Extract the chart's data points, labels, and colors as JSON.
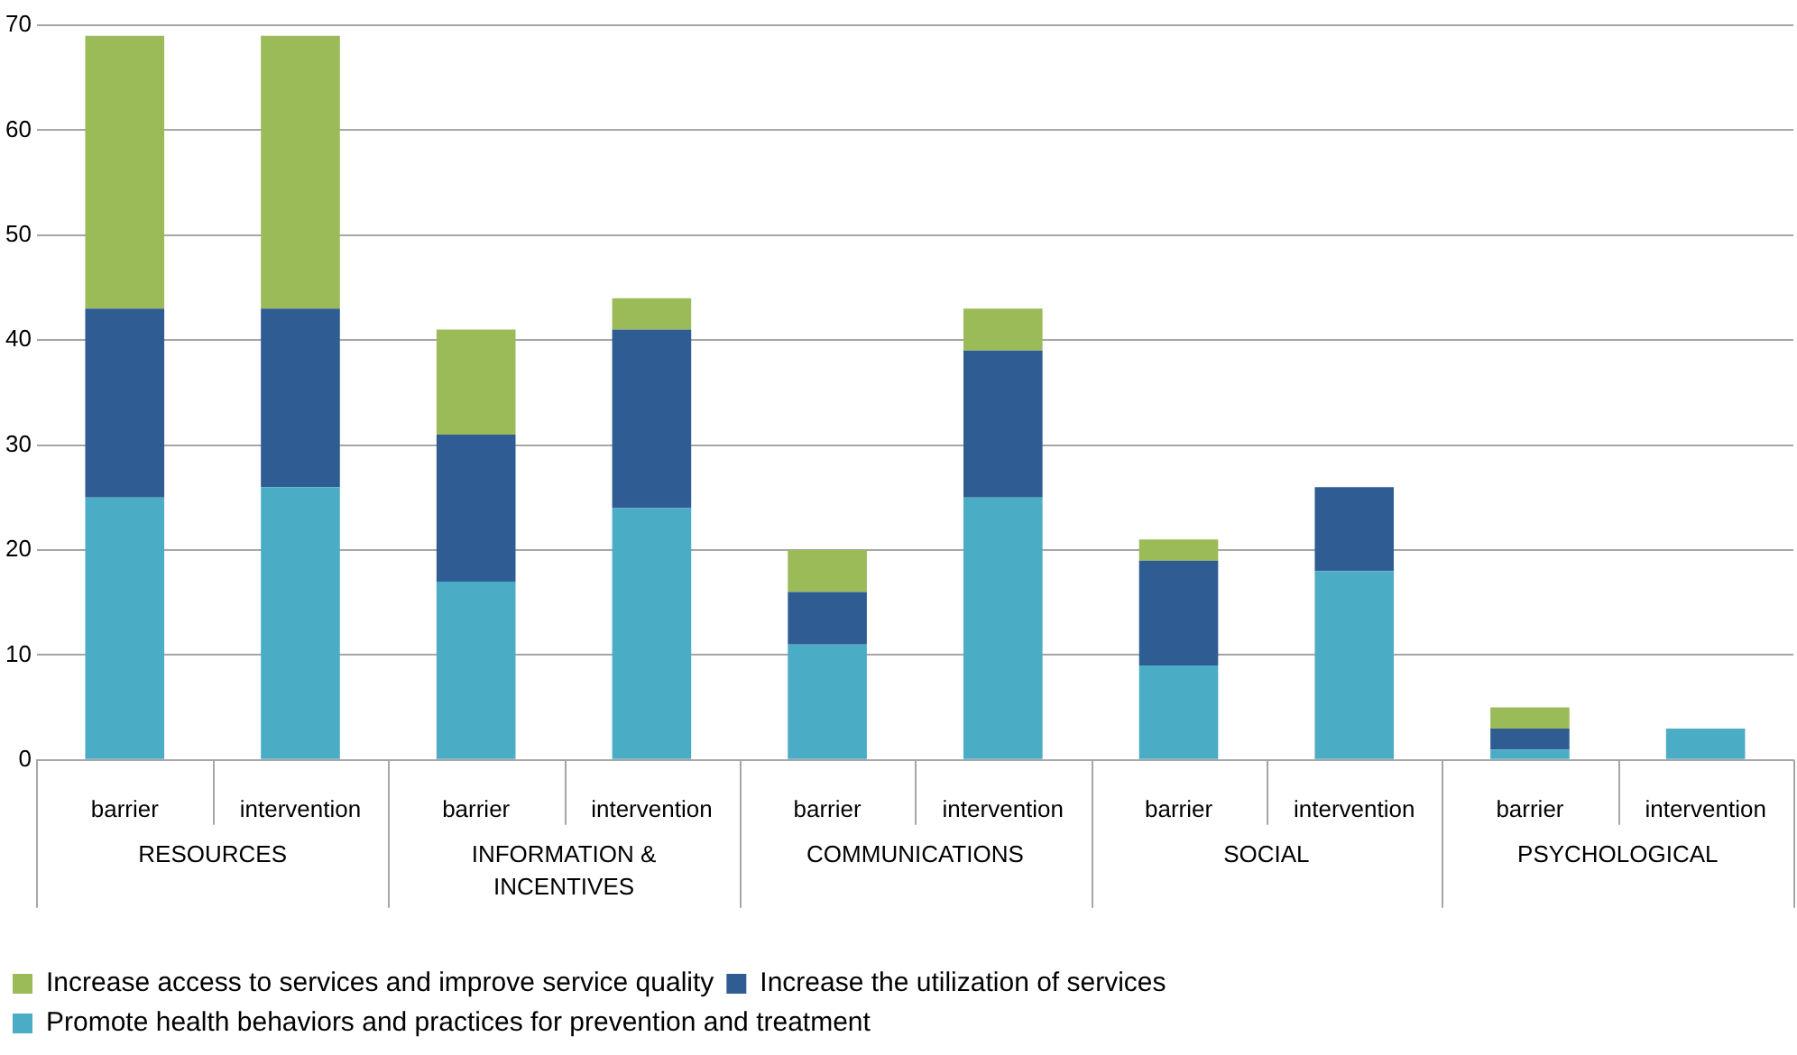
{
  "chart_data": {
    "type": "bar",
    "stacked": true,
    "categories": [
      "barrier",
      "intervention",
      "barrier",
      "intervention",
      "barrier",
      "intervention",
      "barrier",
      "intervention",
      "barrier",
      "intervention"
    ],
    "series": [
      {
        "name": "Promote health behaviors and practices for prevention and treatment",
        "color": "#4bacc6",
        "values": [
          25,
          26,
          17,
          24,
          11,
          25,
          9,
          18,
          1,
          3
        ]
      },
      {
        "name": "Increase the utilization of services",
        "color": "#2f5d93",
        "values": [
          18,
          17,
          14,
          17,
          5,
          14,
          10,
          8,
          2,
          0
        ]
      },
      {
        "name": "Increase access to services and improve service quality",
        "color": "#9bbb59",
        "values": [
          26,
          26,
          10,
          3,
          4,
          4,
          2,
          0,
          2,
          0
        ]
      }
    ],
    "annotations": [
      "RESOURCES",
      "INFORMATION & INCENTIVES",
      "COMMUNICATIONS",
      "SOCIAL",
      "PSYCHOLOGICAL"
    ],
    "ylim": [
      0,
      70
    ],
    "yticks": [
      0,
      10,
      20,
      30,
      40,
      50,
      60,
      70
    ],
    "grid": "y",
    "legend": "bottom left"
  }
}
